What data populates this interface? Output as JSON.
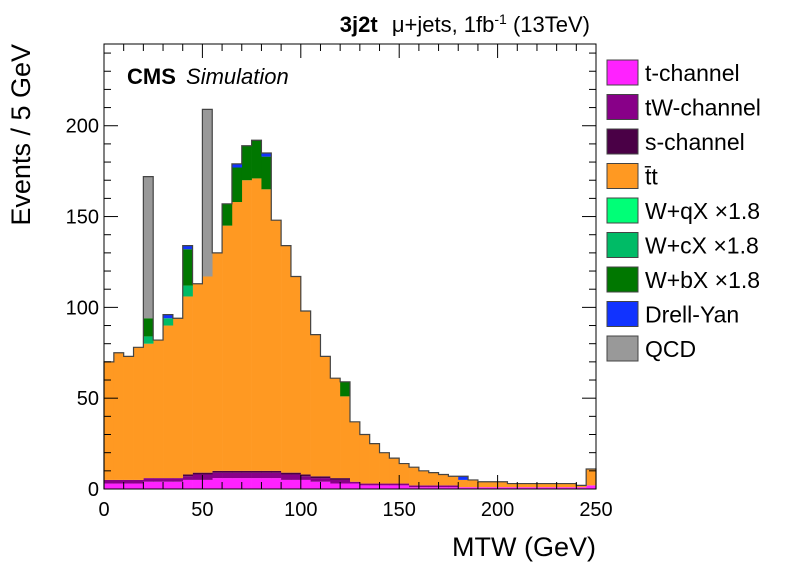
{
  "header": {
    "category": "3j2t",
    "channel": "μ+jets, 1fb",
    "lumi_exp": "-1",
    "energy": " (13TeV)"
  },
  "label": {
    "cms": "CMS",
    "simulation": "Simulation"
  },
  "chart_data": {
    "type": "bar",
    "stacked": true,
    "title": "",
    "xlabel": "MTW (GeV)",
    "ylabel": "Events / 5 GeV",
    "xlim": [
      0,
      250
    ],
    "ylim": [
      0,
      245
    ],
    "xticks": [
      0,
      50,
      100,
      150,
      200,
      250
    ],
    "yticks": [
      0,
      50,
      100,
      150,
      200
    ],
    "bin_width": 5,
    "bins": [
      0,
      5,
      10,
      15,
      20,
      25,
      30,
      35,
      40,
      45,
      50,
      55,
      60,
      65,
      70,
      75,
      80,
      85,
      90,
      95,
      100,
      105,
      110,
      115,
      120,
      125,
      130,
      135,
      140,
      145,
      150,
      155,
      160,
      165,
      170,
      175,
      180,
      185,
      190,
      195,
      200,
      205,
      210,
      215,
      220,
      225,
      230,
      235,
      240,
      245
    ],
    "legend_position": "right",
    "series": [
      {
        "name": "t-channel",
        "color": "#ff22ff",
        "values": [
          3,
          3,
          3,
          3,
          4,
          4,
          4,
          4,
          5,
          5,
          5,
          6,
          6,
          6,
          6,
          6,
          6,
          6,
          5,
          5,
          5,
          4,
          4,
          3,
          3,
          3,
          2,
          2,
          2,
          2,
          2,
          1,
          1,
          1,
          1,
          1,
          1,
          1,
          1,
          1,
          1,
          1,
          1,
          1,
          1,
          1,
          1,
          1,
          1,
          2
        ]
      },
      {
        "name": "tW-channel",
        "color": "#880088",
        "values": [
          2,
          2,
          2,
          2,
          2,
          2,
          2,
          2,
          2,
          3,
          3,
          3,
          3,
          3,
          3,
          3,
          3,
          3,
          3,
          3,
          2,
          2,
          2,
          2,
          2,
          1,
          1,
          1,
          1,
          1,
          1,
          1,
          1,
          1,
          1,
          1,
          0,
          0,
          0,
          0,
          0,
          0,
          0,
          0,
          0,
          0,
          0,
          0,
          0,
          0
        ]
      },
      {
        "name": "s-channel",
        "color": "#4a0046",
        "values": [
          0,
          0,
          0,
          0,
          0,
          0,
          0,
          0,
          1,
          1,
          1,
          1,
          1,
          1,
          1,
          1,
          1,
          1,
          1,
          1,
          1,
          1,
          1,
          1,
          1,
          0,
          0,
          0,
          0,
          0,
          0,
          0,
          0,
          0,
          0,
          0,
          0,
          0,
          0,
          0,
          0,
          0,
          0,
          0,
          0,
          0,
          0,
          0,
          0,
          0
        ]
      },
      {
        "name": "t̄t",
        "color": "#ff9922",
        "values": [
          65,
          70,
          68,
          73,
          74,
          76,
          84,
          88,
          98,
          104,
          108,
          120,
          135,
          148,
          160,
          161,
          155,
          138,
          125,
          108,
          90,
          78,
          66,
          55,
          45,
          33,
          27,
          22,
          17,
          14,
          11,
          10,
          8,
          7,
          6,
          5,
          4,
          4,
          3,
          3,
          3,
          2,
          2,
          2,
          2,
          2,
          2,
          2,
          1,
          9
        ]
      },
      {
        "name": "W+qX ×1.8",
        "color": "#00ff77",
        "values": [
          0,
          0,
          0,
          0,
          0,
          0,
          0,
          0,
          0,
          0,
          0,
          0,
          0,
          0,
          0,
          0,
          0,
          0,
          0,
          0,
          0,
          0,
          0,
          0,
          0,
          0,
          0,
          0,
          0,
          0,
          0,
          0,
          0,
          0,
          0,
          0,
          0,
          0,
          0,
          0,
          0,
          0,
          0,
          0,
          0,
          0,
          0,
          0,
          0,
          0
        ]
      },
      {
        "name": "W+cX ×1.8",
        "color": "#00bb66",
        "values": [
          0,
          0,
          0,
          0,
          4,
          0,
          4,
          0,
          6,
          0,
          0,
          0,
          0,
          0,
          0,
          0,
          0,
          0,
          0,
          0,
          0,
          0,
          0,
          0,
          0,
          0,
          0,
          0,
          0,
          0,
          0,
          0,
          0,
          0,
          0,
          0,
          0,
          0,
          0,
          0,
          0,
          0,
          0,
          0,
          0,
          0,
          0,
          0,
          0,
          0
        ]
      },
      {
        "name": "W+bX ×1.8",
        "color": "#007700",
        "values": [
          0,
          0,
          0,
          0,
          10,
          0,
          0,
          0,
          20,
          0,
          0,
          0,
          12,
          19,
          19,
          21,
          18,
          0,
          0,
          0,
          0,
          0,
          0,
          0,
          8,
          0,
          0,
          0,
          0,
          0,
          0,
          0,
          0,
          0,
          0,
          0,
          0,
          0,
          0,
          0,
          0,
          0,
          0,
          0,
          0,
          0,
          0,
          0,
          0,
          0
        ]
      },
      {
        "name": "Drell-Yan",
        "color": "#1133ff",
        "values": [
          0,
          0,
          0,
          0,
          0,
          0,
          2,
          0,
          2,
          0,
          0,
          0,
          0,
          2,
          0,
          0,
          2,
          0,
          0,
          0,
          0,
          0,
          0,
          0,
          0,
          0,
          0,
          0,
          0,
          0,
          0,
          0,
          0,
          0,
          0,
          0,
          2,
          0,
          0,
          0,
          0,
          0,
          0,
          0,
          0,
          0,
          0,
          0,
          0,
          0
        ]
      },
      {
        "name": "QCD",
        "color": "#999999",
        "values": [
          0,
          0,
          0,
          0,
          78,
          0,
          0,
          0,
          0,
          0,
          92,
          0,
          0,
          0,
          0,
          0,
          0,
          0,
          0,
          0,
          0,
          0,
          0,
          0,
          0,
          0,
          0,
          0,
          0,
          0,
          0,
          0,
          0,
          0,
          0,
          0,
          0,
          0,
          0,
          0,
          0,
          0,
          0,
          0,
          0,
          0,
          0,
          0,
          0,
          0
        ]
      }
    ]
  }
}
